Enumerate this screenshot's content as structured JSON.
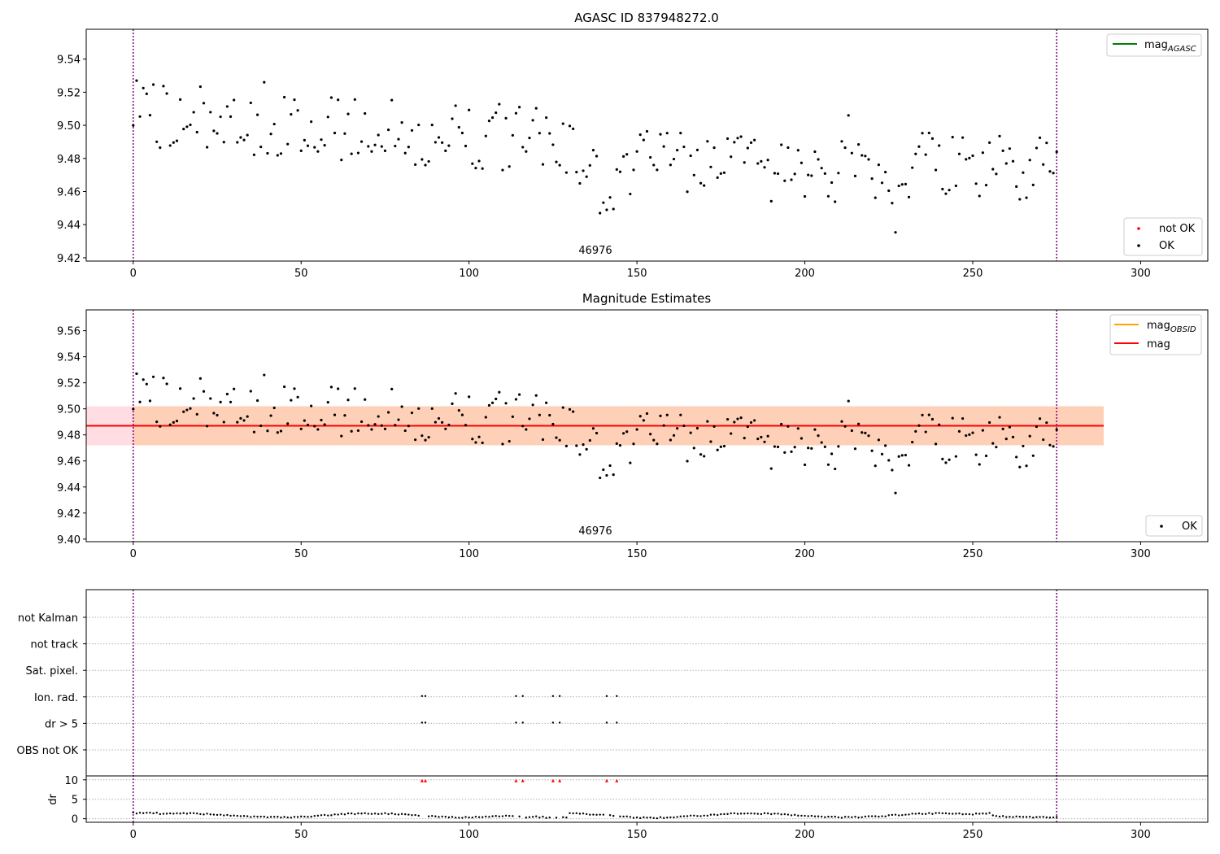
{
  "chart_data": [
    {
      "type": "scatter",
      "title": "AGASC ID 837948272.0",
      "annotation": "46976",
      "xlim": [
        -14,
        320
      ],
      "ylim": [
        9.418,
        9.558
      ],
      "xticks": [
        0,
        50,
        100,
        150,
        200,
        250,
        300
      ],
      "yticks": [
        9.42,
        9.44,
        9.46,
        9.48,
        9.5,
        9.52,
        9.54
      ],
      "ytick_labels": [
        "9.42",
        "9.44",
        "9.46",
        "9.48",
        "9.50",
        "9.52",
        "9.54"
      ],
      "vlines": [
        0,
        275
      ],
      "legend_upper": [
        {
          "label_main": "mag",
          "label_sub": "AGASC",
          "kind": "line",
          "color": "#008000"
        }
      ],
      "legend_lower": [
        {
          "label": "not OK",
          "kind": "point",
          "color": "#ff0000"
        },
        {
          "label": "OK",
          "kind": "point",
          "color": "#000000"
        }
      ],
      "grid": false
    },
    {
      "type": "scatter",
      "title": "Magnitude Estimates",
      "annotation": "46976",
      "xlim": [
        -14,
        320
      ],
      "ylim": [
        9.398,
        9.576
      ],
      "xticks": [
        0,
        50,
        100,
        150,
        200,
        250,
        300
      ],
      "yticks": [
        9.4,
        9.42,
        9.44,
        9.46,
        9.48,
        9.5,
        9.52,
        9.54,
        9.56
      ],
      "ytick_labels": [
        "9.40",
        "9.42",
        "9.44",
        "9.46",
        "9.48",
        "9.50",
        "9.52",
        "9.54",
        "9.56"
      ],
      "vlines": [
        0,
        275
      ],
      "mag_line": 9.487,
      "mag_band": [
        9.472,
        9.502
      ],
      "band_xrange": [
        -14,
        289
      ],
      "obsid_band_xrange": [
        0,
        275
      ],
      "legend_upper": [
        {
          "label_main": "mag",
          "label_sub": "OBSID",
          "kind": "line",
          "color": "#ffa500"
        },
        {
          "label_main": "mag",
          "label_sub": "",
          "kind": "line",
          "color": "#ff0000"
        }
      ],
      "legend_lower": [
        {
          "label": "OK",
          "kind": "point",
          "color": "#000000"
        }
      ],
      "grid": false
    },
    {
      "type": "scatter",
      "title": "",
      "xlim": [
        -14,
        320
      ],
      "xticks": [
        0,
        50,
        100,
        150,
        200,
        250,
        300
      ],
      "vlines": [
        0,
        275
      ],
      "flag_rows": [
        "not Kalman",
        "not track",
        "Sat. pixel.",
        "Ion. rad.",
        "dr > 5",
        "OBS not OK"
      ],
      "flag_points": {
        "Ion. rad.": [
          86,
          87,
          114,
          116,
          125,
          127,
          141,
          144
        ],
        "dr > 5": [
          86,
          87,
          114,
          116,
          125,
          127,
          141,
          144
        ]
      },
      "dr_ylabel": "dr",
      "dr_ylim": [
        -0.5,
        11
      ],
      "dr_yticks": [
        0,
        5,
        10
      ],
      "dr_ytick_labels": [
        "0",
        "5",
        "10"
      ],
      "dr_clipped_x": [
        86,
        87,
        114,
        116,
        125,
        127,
        141,
        144
      ],
      "grid": true
    }
  ],
  "colors": {
    "ok": "#000000",
    "not_ok": "#ff0000",
    "vline": "#800080",
    "mag": "#ff0000",
    "mag_obsid": "#ffa500",
    "mag_agasc": "#008000",
    "band_outer": "#ffdde3",
    "band_inner": "#ffd0b8"
  }
}
